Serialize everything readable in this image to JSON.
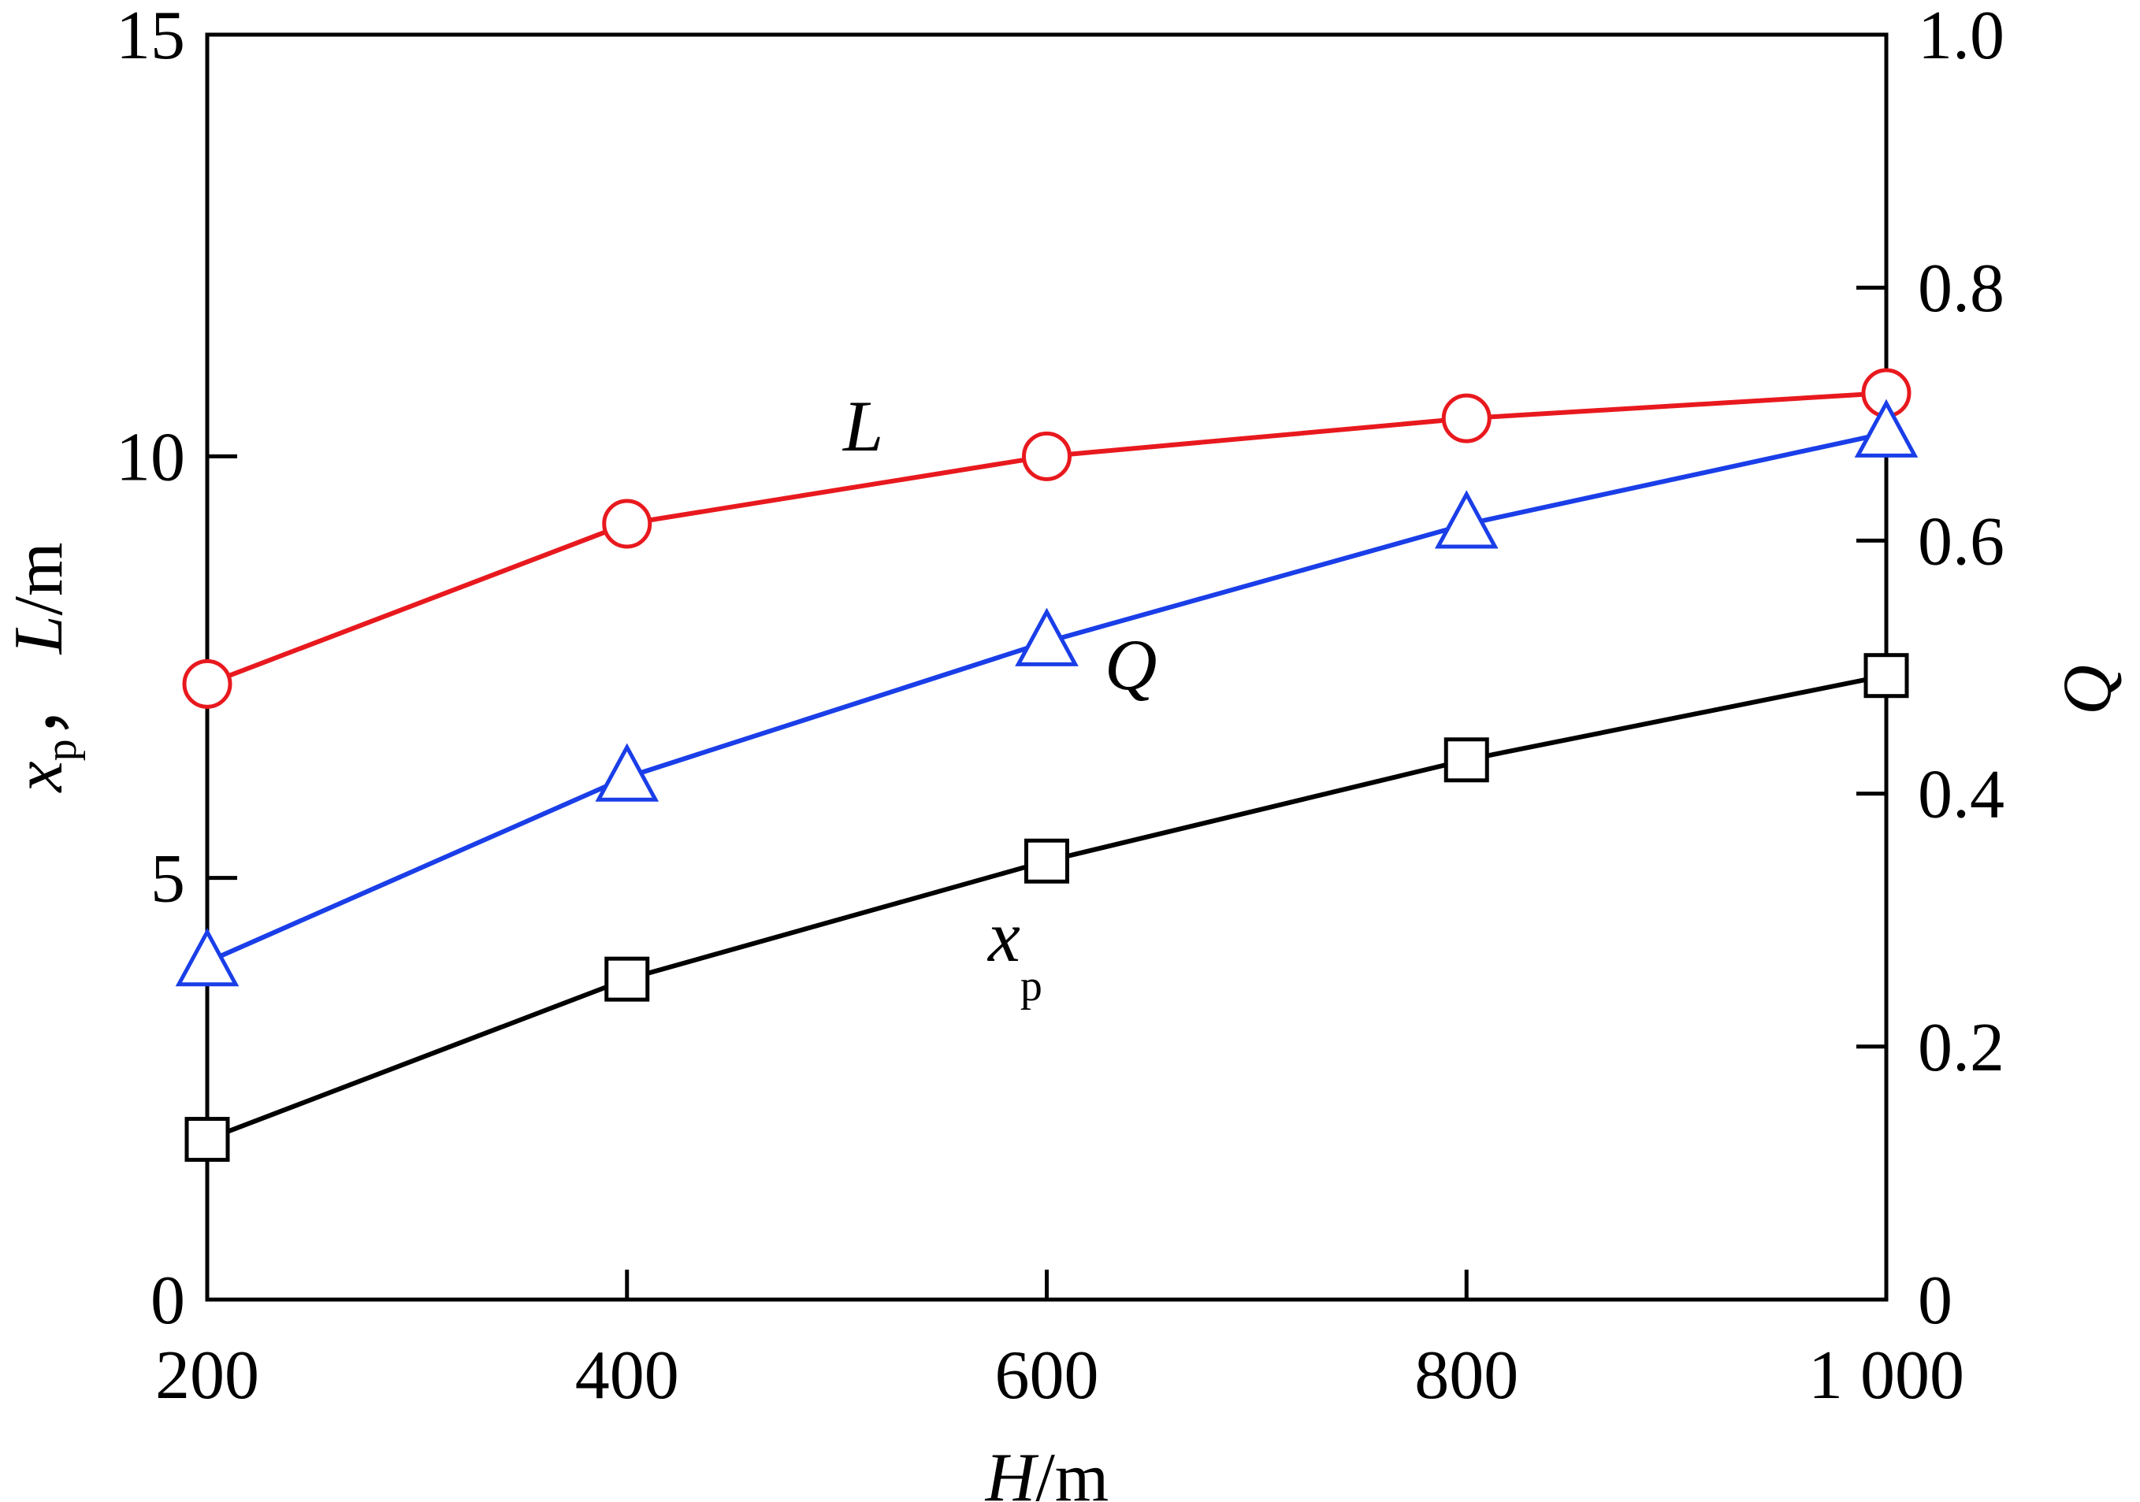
{
  "chart_data": {
    "type": "line",
    "x": [
      200,
      400,
      600,
      800,
      1000
    ],
    "xlabel": {
      "var": "H",
      "unit": "/m"
    },
    "x_ticks": [
      "200",
      "400",
      "600",
      "800",
      "1 000"
    ],
    "xlim": [
      200,
      1000
    ],
    "ylabel_left": {
      "var1": "x",
      "var1_sub": "p",
      "sep": "，",
      "var2": "L",
      "unit": "/m"
    },
    "y_left_ticks": [
      "0",
      "5",
      "10",
      "15"
    ],
    "ylim_left": [
      0,
      15
    ],
    "ylabel_right": {
      "var": "Q"
    },
    "y_right_ticks": [
      "0",
      "0.2",
      "0.4",
      "0.6",
      "0.8",
      "1.0"
    ],
    "ylim_right": [
      0,
      1.0
    ],
    "grid": false,
    "series": [
      {
        "name": "L",
        "axis": "left",
        "marker": "circle",
        "color": "#e8191e",
        "values": [
          7.3,
          9.2,
          10.0,
          10.45,
          10.75
        ]
      },
      {
        "name": "Q",
        "axis": "right",
        "marker": "triangle",
        "color": "#1a3ee8",
        "values": [
          0.267,
          0.413,
          0.52,
          0.613,
          0.685
        ]
      },
      {
        "name": "x",
        "name_sub": "p",
        "axis": "left",
        "marker": "square",
        "color": "#000000",
        "values": [
          1.9,
          3.8,
          5.2,
          6.4,
          7.4
        ]
      }
    ]
  }
}
